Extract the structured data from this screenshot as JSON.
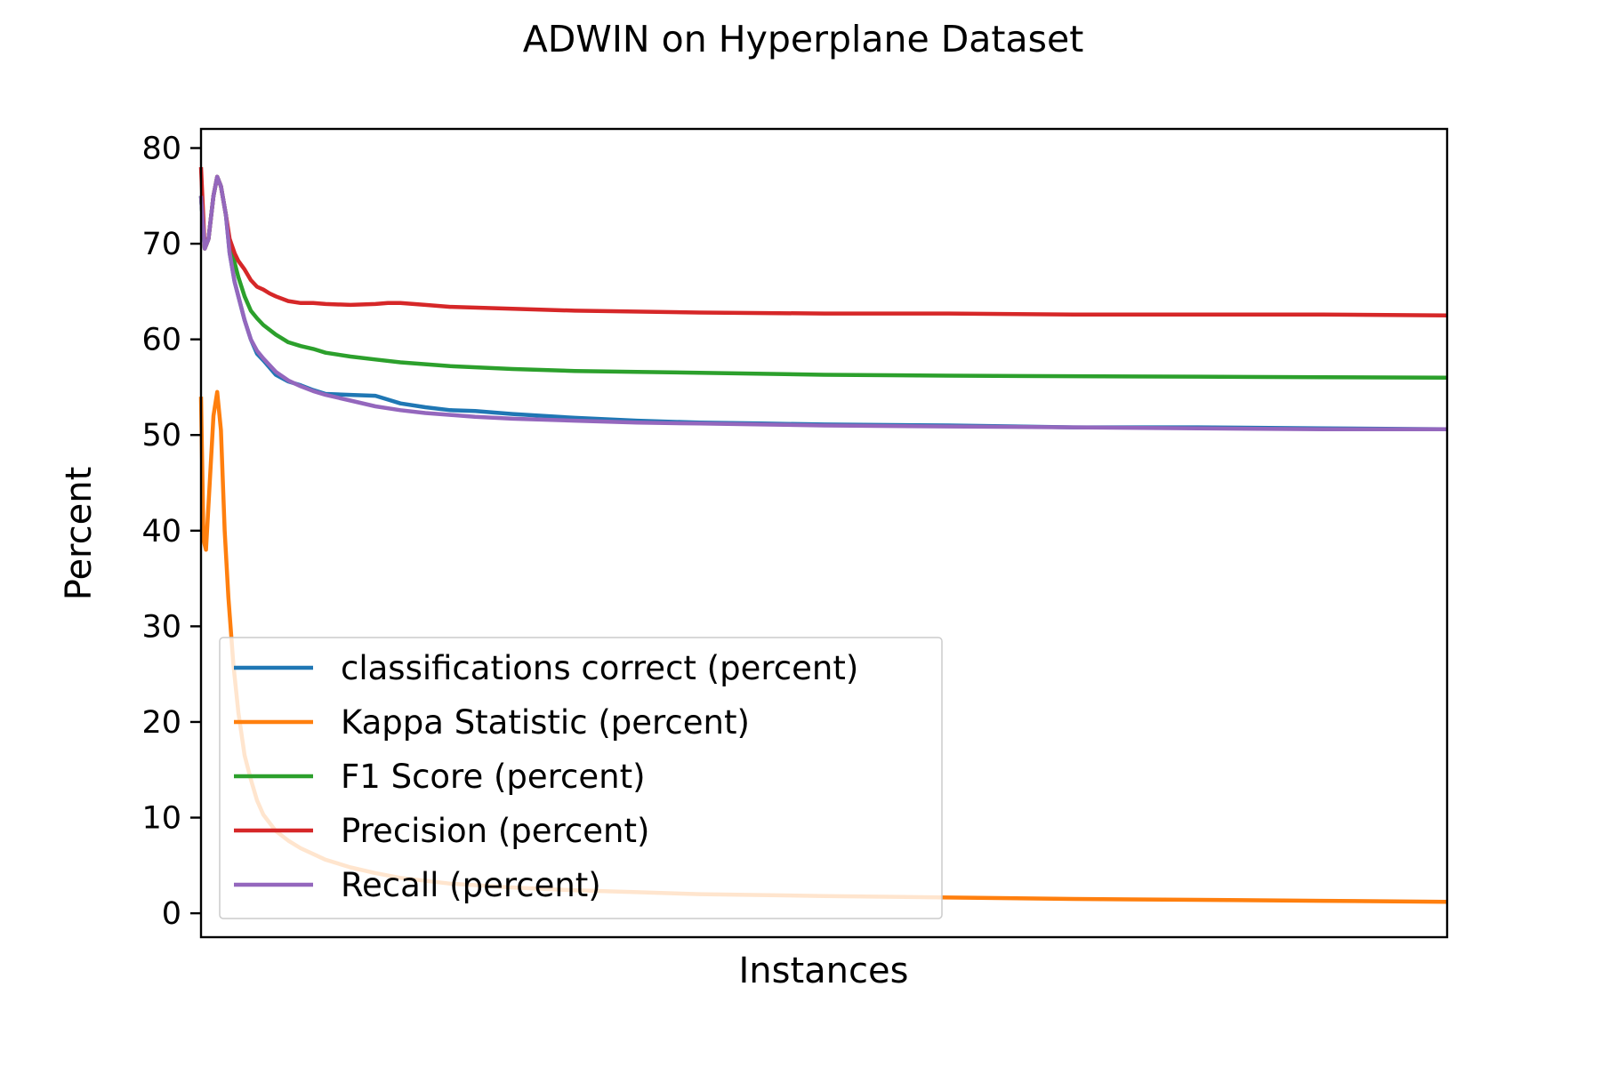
{
  "chart_data": {
    "type": "line",
    "title": "ADWIN on Hyperplane Dataset",
    "xlabel": "Instances",
    "ylabel": "Percent",
    "ylim": [
      -2.5,
      82
    ],
    "xlim": [
      0,
      1
    ],
    "x_ticks_visible": false,
    "yticks": [
      0,
      10,
      20,
      30,
      40,
      50,
      60,
      70,
      80
    ],
    "ytick_labels": [
      "0",
      "10",
      "20",
      "30",
      "40",
      "50",
      "60",
      "70",
      "80"
    ],
    "grid": false,
    "legend_position": "lower-left",
    "series": [
      {
        "name": "classifications correct (percent)",
        "color": "#1f77b4",
        "x": [
          0,
          0.003,
          0.006,
          0.01,
          0.013,
          0.016,
          0.02,
          0.023,
          0.027,
          0.03,
          0.035,
          0.04,
          0.045,
          0.05,
          0.06,
          0.07,
          0.08,
          0.09,
          0.1,
          0.12,
          0.14,
          0.15,
          0.16,
          0.18,
          0.2,
          0.22,
          0.25,
          0.3,
          0.35,
          0.4,
          0.45,
          0.5,
          0.6,
          0.7,
          0.8,
          0.9,
          1.0
        ],
        "y": [
          75,
          69.5,
          70.5,
          75,
          77,
          76,
          73,
          69,
          66,
          64.5,
          62,
          60,
          58.5,
          57.8,
          56.3,
          55.6,
          55.2,
          54.7,
          54.3,
          54.2,
          54.1,
          53.7,
          53.3,
          52.9,
          52.6,
          52.5,
          52.2,
          51.8,
          51.5,
          51.3,
          51.2,
          51.1,
          51.0,
          50.8,
          50.8,
          50.7,
          50.6
        ]
      },
      {
        "name": "Kappa Statistic (percent)",
        "color": "#ff7f0e",
        "x": [
          0,
          0.002,
          0.004,
          0.007,
          0.01,
          0.013,
          0.016,
          0.019,
          0.022,
          0.026,
          0.03,
          0.035,
          0.04,
          0.045,
          0.05,
          0.06,
          0.07,
          0.08,
          0.09,
          0.1,
          0.12,
          0.14,
          0.16,
          0.2,
          0.25,
          0.3,
          0.35,
          0.4,
          0.5,
          0.6,
          0.7,
          0.8,
          0.9,
          1.0
        ],
        "y": [
          54,
          39,
          38,
          45,
          52,
          54.5,
          50.5,
          40,
          33,
          26,
          21,
          16.5,
          14,
          11.8,
          10.3,
          8.6,
          7.6,
          6.8,
          6.2,
          5.6,
          4.8,
          4.2,
          3.7,
          3.1,
          2.7,
          2.4,
          2.2,
          2.0,
          1.8,
          1.65,
          1.5,
          1.4,
          1.3,
          1.2
        ]
      },
      {
        "name": "F1 Score (percent)",
        "color": "#2ca02c",
        "x": [
          0,
          0.003,
          0.006,
          0.01,
          0.013,
          0.016,
          0.02,
          0.023,
          0.027,
          0.03,
          0.035,
          0.04,
          0.045,
          0.05,
          0.06,
          0.07,
          0.08,
          0.09,
          0.1,
          0.12,
          0.14,
          0.16,
          0.18,
          0.2,
          0.25,
          0.3,
          0.35,
          0.4,
          0.5,
          0.6,
          0.7,
          0.8,
          0.9,
          1.0
        ],
        "y": [
          75,
          69.5,
          70.5,
          75,
          77,
          76,
          73,
          70,
          68,
          66.5,
          64.5,
          63,
          62.2,
          61.5,
          60.5,
          59.7,
          59.3,
          59.0,
          58.6,
          58.2,
          57.9,
          57.6,
          57.4,
          57.2,
          56.9,
          56.7,
          56.6,
          56.5,
          56.3,
          56.2,
          56.15,
          56.1,
          56.05,
          56.0
        ]
      },
      {
        "name": "Precision (percent)",
        "color": "#d62728",
        "x": [
          0,
          0.003,
          0.006,
          0.01,
          0.013,
          0.016,
          0.02,
          0.023,
          0.027,
          0.03,
          0.035,
          0.04,
          0.045,
          0.05,
          0.055,
          0.06,
          0.07,
          0.08,
          0.09,
          0.1,
          0.12,
          0.14,
          0.15,
          0.16,
          0.18,
          0.2,
          0.25,
          0.3,
          0.4,
          0.5,
          0.6,
          0.7,
          0.8,
          0.9,
          1.0
        ],
        "y": [
          78,
          69.5,
          70.5,
          75,
          77,
          76,
          73,
          70.5,
          69,
          68.2,
          67.3,
          66.2,
          65.5,
          65.2,
          64.8,
          64.5,
          64.0,
          63.8,
          63.8,
          63.7,
          63.6,
          63.7,
          63.8,
          63.8,
          63.6,
          63.4,
          63.2,
          63.0,
          62.8,
          62.7,
          62.7,
          62.6,
          62.6,
          62.6,
          62.5
        ]
      },
      {
        "name": "Recall (percent)",
        "color": "#9467bd",
        "x": [
          0,
          0.003,
          0.006,
          0.01,
          0.013,
          0.016,
          0.02,
          0.023,
          0.027,
          0.03,
          0.035,
          0.04,
          0.045,
          0.05,
          0.06,
          0.07,
          0.08,
          0.09,
          0.1,
          0.12,
          0.14,
          0.16,
          0.18,
          0.2,
          0.22,
          0.25,
          0.3,
          0.35,
          0.4,
          0.45,
          0.5,
          0.6,
          0.7,
          0.8,
          0.9,
          1.0
        ],
        "y": [
          75,
          69.5,
          70.5,
          75,
          77,
          76,
          73,
          69,
          66,
          64.5,
          62,
          60,
          58.8,
          58.0,
          56.6,
          55.7,
          55.1,
          54.6,
          54.2,
          53.6,
          53.0,
          52.6,
          52.3,
          52.1,
          51.9,
          51.7,
          51.5,
          51.3,
          51.2,
          51.1,
          51.0,
          50.9,
          50.8,
          50.7,
          50.6,
          50.6
        ]
      }
    ]
  }
}
